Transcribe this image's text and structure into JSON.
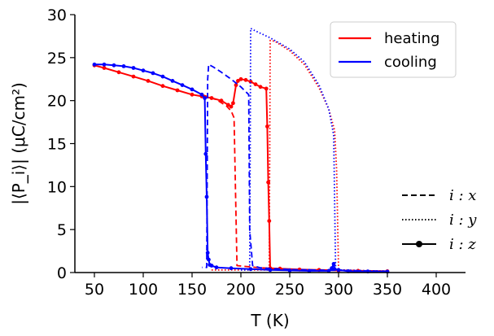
{
  "chart_data": {
    "type": "line",
    "xlabel": "T (K)",
    "ylabel": "|⟨P_i⟩| (μC/cm²)",
    "xlim": [
      30,
      430
    ],
    "ylim": [
      0,
      30
    ],
    "x_ticks": [
      50,
      100,
      150,
      200,
      250,
      300,
      350,
      400
    ],
    "y_ticks": [
      0,
      5,
      10,
      15,
      20,
      25,
      30
    ],
    "x_tick_labels": [
      "50",
      "100",
      "150",
      "200",
      "250",
      "300",
      "350",
      "400"
    ],
    "y_tick_labels": [
      "0",
      "5",
      "10",
      "15",
      "20",
      "25",
      "30"
    ],
    "grid": false,
    "legend_color": {
      "placement": "top-right",
      "entries": [
        {
          "label": "heating",
          "color": "#ff0000"
        },
        {
          "label": "cooling",
          "color": "#0000ff"
        }
      ]
    },
    "legend_style": {
      "placement": "right",
      "entries": [
        {
          "label": "i : x",
          "style": "dashed"
        },
        {
          "label": "i : y",
          "style": "dotted"
        },
        {
          "label": "i : z",
          "style": "solid-marker"
        }
      ]
    },
    "series": [
      {
        "color": "#ff0000",
        "style": "dashed",
        "points": [
          [
            160,
            20.7
          ],
          [
            175,
            20.1
          ],
          [
            185,
            19.4
          ],
          [
            190,
            18.8
          ],
          [
            193,
            18.0
          ],
          [
            196,
            0.8
          ],
          [
            220,
            0.55
          ],
          [
            260,
            0.35
          ],
          [
            300,
            0.25
          ],
          [
            350,
            0.15
          ]
        ]
      },
      {
        "color": "#ff0000",
        "style": "dotted",
        "points": [
          [
            170,
            0.3
          ],
          [
            225,
            0.3
          ],
          [
            229,
            0.3
          ],
          [
            230,
            27.0
          ],
          [
            235,
            26.9
          ],
          [
            250,
            25.8
          ],
          [
            265,
            24.2
          ],
          [
            280,
            21.5
          ],
          [
            290,
            19.0
          ],
          [
            296,
            16.5
          ],
          [
            298,
            12.0
          ],
          [
            300,
            0.3
          ],
          [
            350,
            0.15
          ]
        ]
      },
      {
        "color": "#ff0000",
        "style": "solid-marker",
        "points": [
          [
            50,
            24.1
          ],
          [
            60,
            23.8
          ],
          [
            75,
            23.3
          ],
          [
            90,
            22.8
          ],
          [
            105,
            22.3
          ],
          [
            120,
            21.7
          ],
          [
            135,
            21.2
          ],
          [
            150,
            20.7
          ],
          [
            160,
            20.5
          ],
          [
            170,
            20.3
          ],
          [
            180,
            20.0
          ],
          [
            187,
            19.5
          ],
          [
            190,
            19.3
          ],
          [
            192,
            19.7
          ],
          [
            195,
            21.8
          ],
          [
            197,
            22.3
          ],
          [
            200,
            22.5
          ],
          [
            205,
            22.4
          ],
          [
            210,
            22.2
          ],
          [
            215,
            21.9
          ],
          [
            220,
            21.6
          ],
          [
            226,
            21.4
          ],
          [
            227,
            17.0
          ],
          [
            228,
            10.5
          ],
          [
            229,
            6.0
          ],
          [
            230,
            0.5
          ],
          [
            240,
            0.45
          ],
          [
            260,
            0.35
          ],
          [
            280,
            0.3
          ],
          [
            300,
            0.25
          ],
          [
            320,
            0.2
          ],
          [
            350,
            0.15
          ]
        ]
      },
      {
        "color": "#0000ff",
        "style": "dashed",
        "points": [
          [
            350,
            0.15
          ],
          [
            300,
            0.25
          ],
          [
            250,
            0.35
          ],
          [
            220,
            0.55
          ],
          [
            212,
            0.8
          ],
          [
            209,
            5.0
          ],
          [
            208,
            20.7
          ],
          [
            200,
            21.6
          ],
          [
            190,
            22.5
          ],
          [
            180,
            23.3
          ],
          [
            172,
            23.9
          ],
          [
            167,
            24.2
          ],
          [
            166,
            22.5
          ],
          [
            165,
            0.6
          ],
          [
            160,
            0.6
          ]
        ]
      },
      {
        "color": "#0000ff",
        "style": "dotted",
        "points": [
          [
            350,
            0.15
          ],
          [
            300,
            0.3
          ],
          [
            297,
            0.3
          ],
          [
            295,
            16.0
          ],
          [
            290,
            19.0
          ],
          [
            280,
            21.8
          ],
          [
            265,
            24.5
          ],
          [
            250,
            26.0
          ],
          [
            230,
            27.3
          ],
          [
            215,
            28.1
          ],
          [
            210,
            28.4
          ],
          [
            209,
            0.3
          ],
          [
            200,
            0.3
          ]
        ]
      },
      {
        "color": "#0000ff",
        "style": "solid-marker",
        "points": [
          [
            350,
            0.1
          ],
          [
            330,
            0.12
          ],
          [
            310,
            0.15
          ],
          [
            300,
            0.3
          ],
          [
            296,
            0.4
          ],
          [
            295,
            1.0
          ],
          [
            293,
            0.5
          ],
          [
            290,
            0.2
          ],
          [
            270,
            0.2
          ],
          [
            250,
            0.25
          ],
          [
            230,
            0.3
          ],
          [
            210,
            0.4
          ],
          [
            190,
            0.5
          ],
          [
            175,
            0.6
          ],
          [
            170,
            0.8
          ],
          [
            168,
            0.9
          ],
          [
            167,
            1.5
          ],
          [
            166,
            2.3
          ],
          [
            165,
            8.8
          ],
          [
            164,
            13.8
          ],
          [
            163,
            20.3
          ],
          [
            160,
            20.7
          ],
          [
            150,
            21.3
          ],
          [
            140,
            21.8
          ],
          [
            130,
            22.3
          ],
          [
            120,
            22.8
          ],
          [
            110,
            23.2
          ],
          [
            100,
            23.5
          ],
          [
            90,
            23.8
          ],
          [
            80,
            24.0
          ],
          [
            70,
            24.1
          ],
          [
            60,
            24.2
          ],
          [
            50,
            24.2
          ]
        ]
      }
    ]
  }
}
